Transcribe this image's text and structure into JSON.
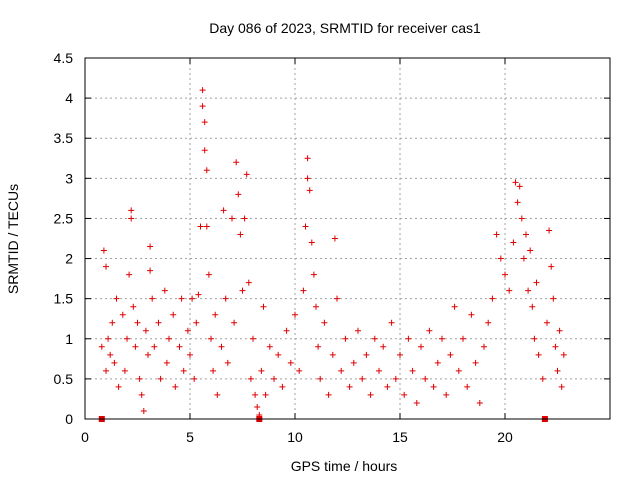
{
  "chart_data": {
    "type": "scatter",
    "title": "Day 086 of 2023, SRMTID for receiver cas1",
    "xlabel": "GPS time / hours",
    "ylabel": "SRMTID / TECUs",
    "xlim": [
      0,
      25
    ],
    "ylim": [
      0,
      4.5
    ],
    "x_ticks": [
      "0",
      "5",
      "10",
      "15",
      "20"
    ],
    "x_tick_values": [
      0,
      5,
      10,
      15,
      20
    ],
    "y_ticks": [
      "0",
      "0.5",
      "1",
      "1.5",
      "2",
      "2.5",
      "3",
      "3.5",
      "4",
      "4.5"
    ],
    "y_tick_values": [
      0,
      0.5,
      1,
      1.5,
      2,
      2.5,
      3,
      3.5,
      4,
      4.5
    ],
    "grid": true,
    "marker": "+",
    "marker_color": "#e00000",
    "series": [
      {
        "name": "SRMTID",
        "points": [
          [
            0.8,
            0.9
          ],
          [
            0.9,
            2.1
          ],
          [
            1.0,
            1.9
          ],
          [
            1.0,
            0.6
          ],
          [
            1.1,
            1.0
          ],
          [
            1.2,
            0.8
          ],
          [
            1.3,
            1.2
          ],
          [
            1.4,
            0.7
          ],
          [
            1.5,
            1.5
          ],
          [
            1.6,
            0.4
          ],
          [
            1.8,
            1.3
          ],
          [
            1.9,
            0.6
          ],
          [
            2.0,
            1.0
          ],
          [
            2.1,
            1.8
          ],
          [
            2.2,
            2.6
          ],
          [
            2.2,
            2.5
          ],
          [
            2.3,
            1.4
          ],
          [
            2.4,
            0.9
          ],
          [
            2.5,
            1.2
          ],
          [
            2.6,
            0.5
          ],
          [
            2.7,
            0.3
          ],
          [
            2.8,
            0.1
          ],
          [
            2.9,
            1.1
          ],
          [
            3.0,
            0.8
          ],
          [
            3.1,
            2.15
          ],
          [
            3.1,
            1.85
          ],
          [
            3.2,
            1.5
          ],
          [
            3.3,
            0.9
          ],
          [
            3.5,
            1.2
          ],
          [
            3.6,
            0.5
          ],
          [
            3.8,
            1.6
          ],
          [
            3.9,
            0.7
          ],
          [
            4.0,
            1.0
          ],
          [
            4.2,
            1.3
          ],
          [
            4.3,
            0.4
          ],
          [
            4.5,
            0.9
          ],
          [
            4.6,
            1.5
          ],
          [
            4.7,
            0.6
          ],
          [
            4.9,
            1.1
          ],
          [
            5.0,
            0.8
          ],
          [
            5.1,
            1.5
          ],
          [
            5.2,
            0.5
          ],
          [
            5.3,
            1.2
          ],
          [
            5.4,
            1.55
          ],
          [
            5.5,
            2.4
          ],
          [
            5.6,
            4.1
          ],
          [
            5.6,
            3.9
          ],
          [
            5.7,
            3.7
          ],
          [
            5.7,
            3.35
          ],
          [
            5.8,
            3.1
          ],
          [
            5.8,
            2.4
          ],
          [
            5.9,
            1.8
          ],
          [
            6.0,
            1.0
          ],
          [
            6.1,
            0.6
          ],
          [
            6.2,
            1.3
          ],
          [
            6.3,
            0.3
          ],
          [
            6.5,
            0.9
          ],
          [
            6.6,
            2.6
          ],
          [
            6.7,
            1.5
          ],
          [
            6.8,
            0.7
          ],
          [
            7.0,
            2.5
          ],
          [
            7.1,
            1.2
          ],
          [
            7.2,
            3.2
          ],
          [
            7.3,
            2.8
          ],
          [
            7.4,
            2.3
          ],
          [
            7.5,
            1.6
          ],
          [
            7.6,
            2.5
          ],
          [
            7.7,
            3.05
          ],
          [
            7.8,
            1.7
          ],
          [
            7.9,
            0.5
          ],
          [
            8.0,
            1.0
          ],
          [
            8.1,
            0.3
          ],
          [
            8.2,
            0.15
          ],
          [
            8.3,
            0.05
          ],
          [
            8.4,
            0.6
          ],
          [
            8.5,
            1.4
          ],
          [
            8.6,
            0.3
          ],
          [
            8.8,
            0.9
          ],
          [
            9.0,
            0.5
          ],
          [
            9.2,
            0.8
          ],
          [
            9.4,
            0.4
          ],
          [
            9.6,
            1.1
          ],
          [
            9.8,
            0.7
          ],
          [
            10.0,
            1.3
          ],
          [
            10.2,
            0.6
          ],
          [
            10.4,
            1.6
          ],
          [
            10.5,
            2.4
          ],
          [
            10.6,
            3.25
          ],
          [
            10.6,
            3.0
          ],
          [
            10.7,
            2.85
          ],
          [
            10.8,
            2.2
          ],
          [
            10.9,
            1.8
          ],
          [
            11.0,
            1.4
          ],
          [
            11.1,
            0.9
          ],
          [
            11.2,
            0.5
          ],
          [
            11.4,
            1.2
          ],
          [
            11.6,
            0.3
          ],
          [
            11.8,
            0.8
          ],
          [
            11.9,
            2.25
          ],
          [
            12.0,
            1.5
          ],
          [
            12.2,
            0.6
          ],
          [
            12.4,
            1.0
          ],
          [
            12.6,
            0.4
          ],
          [
            12.8,
            0.7
          ],
          [
            13.0,
            1.1
          ],
          [
            13.2,
            0.5
          ],
          [
            13.4,
            0.8
          ],
          [
            13.6,
            0.3
          ],
          [
            13.8,
            1.0
          ],
          [
            14.0,
            0.6
          ],
          [
            14.2,
            0.9
          ],
          [
            14.4,
            0.4
          ],
          [
            14.6,
            1.2
          ],
          [
            14.8,
            0.5
          ],
          [
            15.0,
            0.8
          ],
          [
            15.2,
            0.3
          ],
          [
            15.4,
            1.0
          ],
          [
            15.6,
            0.6
          ],
          [
            15.8,
            0.2
          ],
          [
            16.0,
            0.9
          ],
          [
            16.2,
            0.5
          ],
          [
            16.4,
            1.1
          ],
          [
            16.6,
            0.4
          ],
          [
            16.8,
            0.7
          ],
          [
            17.0,
            1.0
          ],
          [
            17.2,
            0.3
          ],
          [
            17.4,
            0.8
          ],
          [
            17.6,
            1.4
          ],
          [
            17.8,
            0.6
          ],
          [
            18.0,
            1.0
          ],
          [
            18.2,
            0.4
          ],
          [
            18.4,
            1.3
          ],
          [
            18.6,
            0.7
          ],
          [
            18.8,
            0.2
          ],
          [
            19.0,
            0.9
          ],
          [
            19.2,
            1.2
          ],
          [
            19.4,
            1.5
          ],
          [
            19.6,
            2.3
          ],
          [
            19.8,
            2.0
          ],
          [
            20.0,
            1.8
          ],
          [
            20.2,
            1.6
          ],
          [
            20.4,
            2.2
          ],
          [
            20.5,
            2.95
          ],
          [
            20.6,
            2.7
          ],
          [
            20.7,
            2.9
          ],
          [
            20.8,
            2.5
          ],
          [
            20.9,
            2.0
          ],
          [
            21.0,
            2.3
          ],
          [
            21.1,
            1.6
          ],
          [
            21.2,
            2.1
          ],
          [
            21.3,
            1.4
          ],
          [
            21.4,
            1.0
          ],
          [
            21.5,
            1.7
          ],
          [
            21.6,
            0.8
          ],
          [
            21.8,
            0.5
          ],
          [
            22.0,
            1.2
          ],
          [
            22.1,
            2.35
          ],
          [
            22.2,
            1.9
          ],
          [
            22.3,
            1.5
          ],
          [
            22.4,
            0.9
          ],
          [
            22.5,
            0.6
          ],
          [
            22.6,
            1.1
          ],
          [
            22.7,
            0.4
          ],
          [
            22.8,
            0.8
          ]
        ]
      }
    ],
    "baseline_markers": [
      0.8,
      8.3,
      21.9
    ]
  }
}
